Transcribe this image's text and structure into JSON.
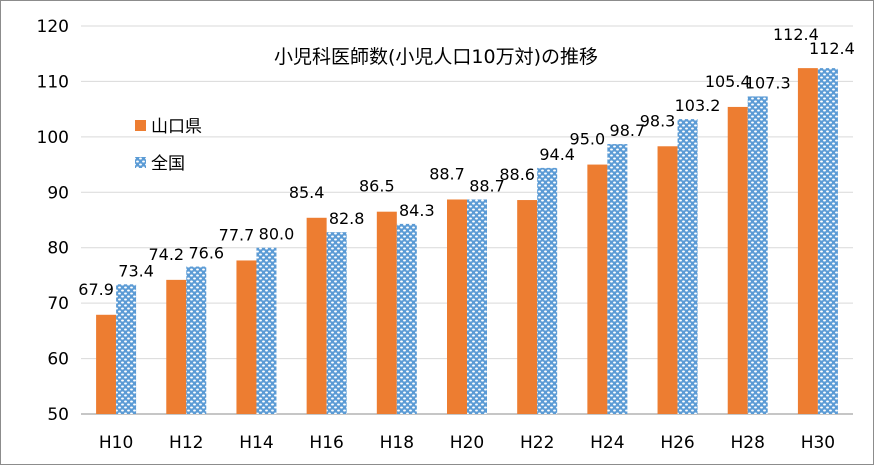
{
  "chart_data": {
    "type": "bar",
    "title": "小児科医師数(小児人口10万対)の推移",
    "xlabel": "",
    "ylabel": "",
    "categories": [
      "H10",
      "H12",
      "H14",
      "H16",
      "H18",
      "H20",
      "H22",
      "H24",
      "H26",
      "H28",
      "H30"
    ],
    "series": [
      {
        "name": "山口県",
        "values": [
          67.9,
          74.2,
          77.7,
          85.4,
          86.5,
          88.7,
          88.6,
          95.0,
          98.3,
          105.4,
          112.4
        ],
        "value_labels": [
          "67.9",
          "74.2",
          "77.7",
          "85.4",
          "86.5",
          "88.7",
          "88.6",
          "95.0",
          "98.3",
          "105.4",
          "112.4"
        ],
        "color": "#ED7D31"
      },
      {
        "name": "全国",
        "values": [
          73.4,
          76.6,
          80.0,
          82.8,
          84.3,
          88.7,
          94.4,
          98.7,
          103.2,
          107.3,
          112.4
        ],
        "value_labels": [
          "73.4",
          "76.6",
          "80.0",
          "82.8",
          "84.3",
          "88.7",
          "94.4",
          "98.7",
          "103.2",
          "107.3",
          "112.4"
        ],
        "color": "#5B9BD5",
        "pattern": "dotted"
      }
    ],
    "ylim": [
      50,
      120
    ],
    "yticks": [
      "50",
      "60",
      "70",
      "80",
      "90",
      "100",
      "110",
      "120"
    ],
    "grid": true,
    "legend_position": "top-left"
  }
}
